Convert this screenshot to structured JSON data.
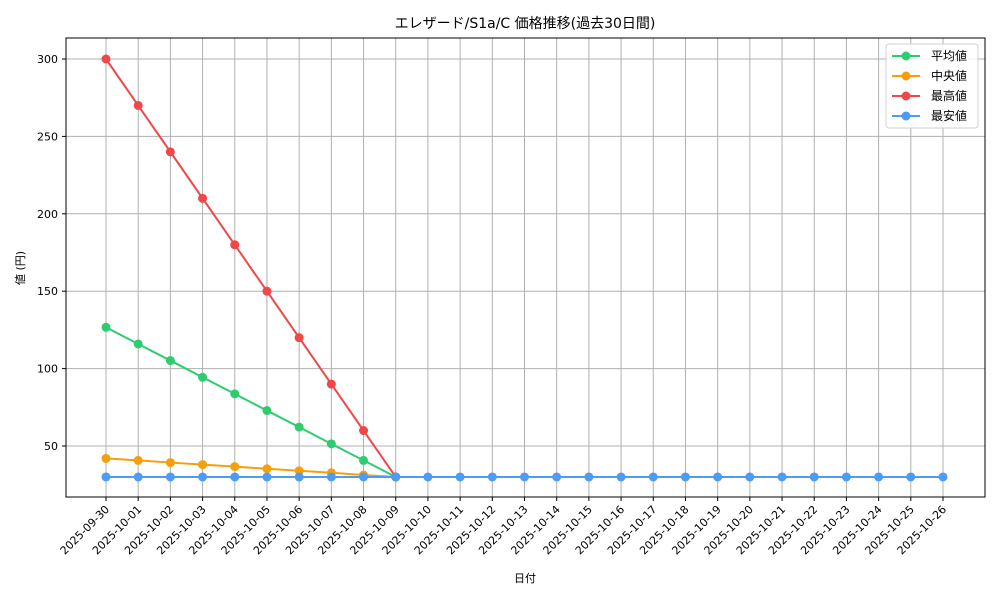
{
  "chart_data": {
    "type": "line",
    "title": "エレザード/S1a/C 価格推移(過去30日間)",
    "xlabel": "日付",
    "ylabel": "値 (円)",
    "ylim": [
      16.5,
      313.5
    ],
    "yticks": [
      50,
      100,
      150,
      200,
      250,
      300
    ],
    "grid": true,
    "legend_position": "upper right",
    "categories": [
      "2025-09-30",
      "2025-10-01",
      "2025-10-02",
      "2025-10-03",
      "2025-10-04",
      "2025-10-05",
      "2025-10-06",
      "2025-10-07",
      "2025-10-08",
      "2025-10-09",
      "2025-10-10",
      "2025-10-11",
      "2025-10-12",
      "2025-10-13",
      "2025-10-14",
      "2025-10-15",
      "2025-10-16",
      "2025-10-17",
      "2025-10-18",
      "2025-10-19",
      "2025-10-20",
      "2025-10-21",
      "2025-10-22",
      "2025-10-23",
      "2025-10-24",
      "2025-10-25",
      "2025-10-26"
    ],
    "series": [
      {
        "name": "平均値",
        "color": "#2ecc71",
        "values": [
          126.7,
          115.9,
          105.2,
          94.4,
          83.7,
          72.9,
          62.2,
          51.4,
          40.7,
          30,
          30,
          30,
          30,
          30,
          30,
          30,
          30,
          30,
          30,
          30,
          30,
          30,
          30,
          30,
          30,
          30,
          30
        ],
        "x_end_index": 9
      },
      {
        "name": "中央値",
        "color": "#f5a00a",
        "values": [
          42.0,
          40.7,
          39.3,
          38.0,
          36.7,
          35.3,
          34.0,
          32.7,
          31.3,
          30,
          30,
          30,
          30,
          30,
          30,
          30,
          30,
          30,
          30,
          30,
          30,
          30,
          30,
          30,
          30,
          30,
          30
        ],
        "x_end_index": 9
      },
      {
        "name": "最高値",
        "color": "#f04848",
        "values": [
          300,
          270,
          240,
          210,
          180,
          150,
          120,
          90,
          60,
          30,
          30,
          30,
          30,
          30,
          30,
          30,
          30,
          30,
          30,
          30,
          30,
          30,
          30,
          30,
          30,
          30,
          30
        ],
        "x_end_index": 9
      },
      {
        "name": "最安値",
        "color": "#4d9bf5",
        "values": [
          30,
          30,
          30,
          30,
          30,
          30,
          30,
          30,
          30,
          30,
          30,
          30,
          30,
          30,
          30,
          30,
          30,
          30,
          30,
          30,
          30,
          30,
          30,
          30,
          30,
          30,
          30
        ],
        "x_end_index": 26
      }
    ]
  }
}
